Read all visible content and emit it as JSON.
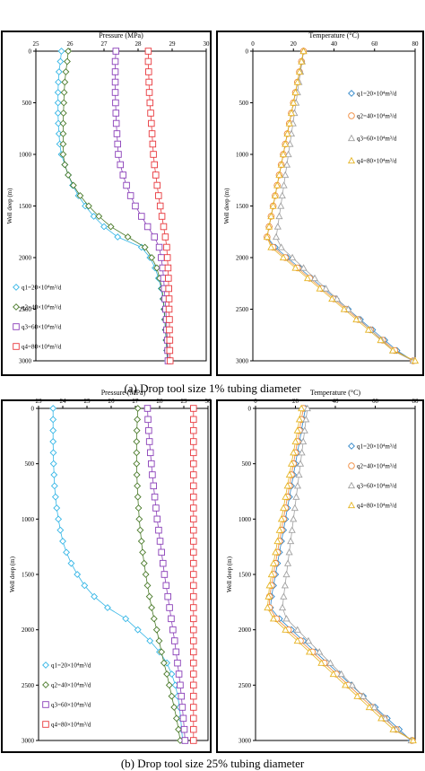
{
  "captions": {
    "a": "(a) Drop tool size 1% tubing diameter",
    "b": "(b) Drop tool size 25% tubing diameter"
  },
  "chart_data": [
    {
      "id": "a-pressure",
      "type": "line",
      "title": "Pressure (MPa)",
      "xlabel": "Pressure (MPa)",
      "ylabel": "Well deep (m)",
      "xlim": [
        25,
        30
      ],
      "xticks": [
        "25",
        "26",
        "27",
        "28",
        "29",
        "30"
      ],
      "ylim": [
        0,
        3000
      ],
      "yticks": [
        "0",
        "500",
        "1000",
        "1500",
        "2000",
        "2500",
        "3000"
      ],
      "y_inverted": true,
      "x_on_top": true,
      "legend_position": "bottom-left",
      "depths": [
        0,
        100,
        200,
        300,
        400,
        500,
        600,
        700,
        800,
        900,
        1000,
        1100,
        1200,
        1300,
        1400,
        1500,
        1600,
        1700,
        1800,
        1900,
        2000,
        2100,
        2200,
        2300,
        2400,
        2500,
        2600,
        2700,
        2800,
        2900,
        3000
      ],
      "series": [
        {
          "name": "q1=20×10⁴m³/d",
          "marker": "diamond",
          "color": "#35b6e6",
          "values": [
            25.75,
            25.72,
            25.68,
            25.66,
            25.65,
            25.65,
            25.65,
            25.66,
            25.68,
            25.7,
            25.75,
            25.85,
            25.95,
            26.08,
            26.25,
            26.45,
            26.7,
            27.0,
            27.4,
            28.1,
            28.35,
            28.5,
            28.6,
            28.68,
            28.73,
            28.76,
            28.78,
            28.8,
            28.82,
            28.84,
            28.86
          ]
        },
        {
          "name": "q2=40×10⁴m³/d",
          "marker": "diamond",
          "color": "#4a7a2a",
          "values": [
            25.95,
            25.92,
            25.88,
            25.85,
            25.83,
            25.82,
            25.81,
            25.8,
            25.8,
            25.8,
            25.8,
            25.85,
            25.95,
            26.1,
            26.3,
            26.55,
            26.85,
            27.2,
            27.7,
            28.2,
            28.4,
            28.55,
            28.63,
            28.7,
            28.74,
            28.77,
            28.79,
            28.81,
            28.83,
            28.85,
            28.87
          ]
        },
        {
          "name": "q3=60×10⁴m³/d",
          "marker": "square",
          "color": "#8a3fb8",
          "values": [
            27.35,
            27.33,
            27.33,
            27.33,
            27.33,
            27.34,
            27.35,
            27.36,
            27.38,
            27.4,
            27.42,
            27.48,
            27.56,
            27.66,
            27.78,
            27.92,
            28.1,
            28.28,
            28.48,
            28.62,
            28.68,
            28.72,
            28.75,
            28.77,
            28.79,
            28.81,
            28.83,
            28.84,
            28.86,
            28.87,
            28.88
          ]
        },
        {
          "name": "q4=80×10⁴m³/d",
          "marker": "square",
          "color": "#e8383d",
          "values": [
            28.3,
            28.3,
            28.31,
            28.32,
            28.33,
            28.35,
            28.37,
            28.39,
            28.41,
            28.43,
            28.45,
            28.48,
            28.52,
            28.56,
            28.6,
            28.65,
            28.7,
            28.75,
            28.8,
            28.84,
            28.86,
            28.88,
            28.89,
            28.9,
            28.91,
            28.91,
            28.92,
            28.92,
            28.93,
            28.93,
            28.94
          ]
        }
      ]
    },
    {
      "id": "a-temperature",
      "type": "line",
      "title": "Temperature (°C)",
      "xlabel": "Temperature (°C)",
      "ylabel": "Well deep (m)",
      "xlim": [
        0,
        80
      ],
      "xticks": [
        "0",
        "20",
        "40",
        "60",
        "80"
      ],
      "ylim": [
        0,
        3000
      ],
      "yticks": [
        "0",
        "500",
        "1000",
        "1500",
        "2000",
        "2500",
        "3000"
      ],
      "y_inverted": true,
      "x_on_top": true,
      "legend_position": "top-right",
      "depths": [
        0,
        100,
        200,
        300,
        400,
        500,
        600,
        700,
        800,
        900,
        1000,
        1100,
        1200,
        1300,
        1400,
        1500,
        1600,
        1700,
        1800,
        1900,
        2000,
        2100,
        2200,
        2300,
        2400,
        2500,
        2600,
        2700,
        2800,
        2900,
        3000
      ],
      "series": [
        {
          "name": "q1=20×10⁴m³/d",
          "marker": "diamond",
          "color": "#2f86c9",
          "values": [
            25,
            24,
            23,
            22,
            21,
            20,
            19,
            18,
            17,
            16,
            15,
            14,
            13,
            12,
            11,
            10,
            9,
            8,
            7,
            11,
            17,
            23,
            29,
            35,
            41,
            47,
            53,
            59,
            65,
            71,
            79
          ]
        },
        {
          "name": "q2=40×10⁴m³/d",
          "marker": "circle",
          "color": "#f08a3c",
          "values": [
            25,
            24,
            23,
            22,
            21,
            20,
            19,
            18,
            17,
            16,
            15,
            14,
            13,
            12,
            11,
            10,
            9,
            8,
            7,
            10,
            16,
            22,
            28,
            34,
            40,
            46,
            52,
            58,
            64,
            70,
            79
          ]
        },
        {
          "name": "q3=60×10⁴m³/d",
          "marker": "triangle",
          "color": "#a0a0a0",
          "values": [
            25,
            24.3,
            23.5,
            22.7,
            22,
            21.3,
            20.5,
            19.8,
            19,
            18.3,
            17.5,
            16.8,
            16,
            15.3,
            14.5,
            13.8,
            13,
            12.3,
            11.5,
            14,
            19.5,
            25,
            30.5,
            36,
            41.5,
            47,
            52.5,
            58,
            63.5,
            69,
            79
          ]
        },
        {
          "name": "q4=80×10⁴m³/d",
          "marker": "triangle",
          "color": "#e6b422",
          "values": [
            25,
            24,
            23,
            22,
            21,
            20,
            19,
            18,
            17,
            16,
            15,
            14,
            13,
            12,
            11,
            10,
            9,
            8,
            7,
            9,
            15,
            21,
            27,
            33,
            39,
            45,
            51,
            57,
            63,
            69,
            80
          ]
        }
      ]
    },
    {
      "id": "b-pressure",
      "type": "line",
      "title": "Pressure (MPa)",
      "xlabel": "Pressure (MPa)",
      "ylabel": "Well deep (m)",
      "xlim": [
        23,
        30
      ],
      "xticks": [
        "23",
        "24",
        "25",
        "26",
        "27",
        "28",
        "29",
        "30"
      ],
      "ylim": [
        0,
        3000
      ],
      "yticks": [
        "0",
        "500",
        "1000",
        "1500",
        "2000",
        "2500",
        "3000"
      ],
      "y_inverted": true,
      "x_on_top": true,
      "legend_position": "bottom-left",
      "depths": [
        0,
        100,
        200,
        300,
        400,
        500,
        600,
        700,
        800,
        900,
        1000,
        1100,
        1200,
        1300,
        1400,
        1500,
        1600,
        1700,
        1800,
        1900,
        2000,
        2100,
        2200,
        2300,
        2400,
        2500,
        2600,
        2700,
        2800,
        2900,
        3000
      ],
      "series": [
        {
          "name": "q1=20×10⁴m³/d",
          "marker": "diamond",
          "color": "#35b6e6",
          "values": [
            23.6,
            23.6,
            23.6,
            23.6,
            23.61,
            23.62,
            23.64,
            23.66,
            23.7,
            23.75,
            23.82,
            23.9,
            24.0,
            24.15,
            24.35,
            24.6,
            24.9,
            25.3,
            25.85,
            26.6,
            27.1,
            27.6,
            28.0,
            28.3,
            28.5,
            28.65,
            28.75,
            28.82,
            28.87,
            28.91,
            28.95
          ]
        },
        {
          "name": "q2=40×10⁴m³/d",
          "marker": "diamond",
          "color": "#4a7a2a",
          "values": [
            27.1,
            27.08,
            27.06,
            27.05,
            27.05,
            27.05,
            27.06,
            27.08,
            27.1,
            27.13,
            27.16,
            27.2,
            27.25,
            27.3,
            27.36,
            27.43,
            27.5,
            27.58,
            27.67,
            27.77,
            27.88,
            27.98,
            28.08,
            28.18,
            28.3,
            28.4,
            28.5,
            28.6,
            28.7,
            28.78,
            28.85
          ]
        },
        {
          "name": "q3=60×10⁴m³/d",
          "marker": "square",
          "color": "#8a3fb8",
          "values": [
            27.5,
            27.52,
            27.55,
            27.58,
            27.62,
            27.66,
            27.7,
            27.75,
            27.8,
            27.85,
            27.9,
            27.96,
            28.02,
            28.08,
            28.14,
            28.2,
            28.27,
            28.34,
            28.41,
            28.48,
            28.55,
            28.62,
            28.68,
            28.74,
            28.8,
            28.85,
            28.9,
            28.94,
            28.98,
            29.02,
            29.05
          ]
        },
        {
          "name": "q4=80×10⁴m³/d",
          "marker": "square",
          "color": "#e8383d",
          "values": [
            29.4,
            29.4,
            29.4,
            29.4,
            29.4,
            29.4,
            29.4,
            29.4,
            29.4,
            29.4,
            29.4,
            29.4,
            29.4,
            29.4,
            29.4,
            29.4,
            29.4,
            29.4,
            29.4,
            29.4,
            29.4,
            29.4,
            29.4,
            29.4,
            29.4,
            29.4,
            29.4,
            29.4,
            29.4,
            29.4,
            29.4
          ]
        }
      ]
    },
    {
      "id": "b-temperature",
      "type": "line",
      "title": "Temperature (°C)",
      "xlabel": "Temperature (°C)",
      "ylabel": "Well deep (m)",
      "xlim": [
        0,
        80
      ],
      "xticks": [
        "0",
        "20",
        "40",
        "60",
        "80"
      ],
      "ylim": [
        0,
        3000
      ],
      "yticks": [
        "0",
        "500",
        "1000",
        "1500",
        "2000",
        "2500",
        "3000"
      ],
      "y_inverted": true,
      "x_on_top": true,
      "legend_position": "top-right",
      "depths": [
        0,
        100,
        200,
        300,
        400,
        500,
        600,
        700,
        800,
        900,
        1000,
        1100,
        1200,
        1300,
        1400,
        1500,
        1600,
        1700,
        1800,
        1900,
        2000,
        2100,
        2200,
        2300,
        2400,
        2500,
        2600,
        2700,
        2800,
        2900,
        3000
      ],
      "series": [
        {
          "name": "q1=20×10⁴m³/d",
          "marker": "diamond",
          "color": "#2f86c9",
          "values": [
            25,
            24,
            23,
            22,
            21,
            20,
            19,
            18,
            17,
            16,
            15,
            14,
            13,
            12,
            11,
            10,
            9,
            8,
            7.5,
            12,
            18,
            24,
            30,
            36,
            42,
            48,
            54,
            60,
            66,
            72,
            78
          ]
        },
        {
          "name": "q2=40×10⁴m³/d",
          "marker": "circle",
          "color": "#f08a3c",
          "values": [
            24,
            23,
            22,
            21,
            20,
            19,
            18,
            17,
            16,
            15,
            14,
            13,
            12,
            11,
            10,
            9,
            8,
            7,
            7,
            10.5,
            16.5,
            22.5,
            28.5,
            34.5,
            40.5,
            46.5,
            52.5,
            58.5,
            64.5,
            70.5,
            78.5
          ]
        },
        {
          "name": "q3=60×10⁴m³/d",
          "marker": "triangle",
          "color": "#a0a0a0",
          "values": [
            26,
            25.3,
            24.6,
            23.9,
            23.2,
            22.5,
            21.8,
            21.1,
            20.4,
            19.7,
            19,
            18.3,
            17.6,
            16.9,
            16.2,
            15.5,
            14.8,
            14.1,
            13.5,
            15.5,
            21,
            26.5,
            32,
            37.5,
            43,
            48.5,
            54,
            59.5,
            65,
            70.5,
            78
          ]
        },
        {
          "name": "q4=80×10⁴m³/d",
          "marker": "triangle",
          "color": "#e6b422",
          "values": [
            23,
            22,
            21,
            20,
            19,
            18,
            17,
            16,
            15,
            14,
            13,
            12,
            11,
            10,
            9,
            8,
            7,
            6.5,
            6,
            9,
            15,
            21,
            27,
            33,
            39,
            45,
            51,
            57,
            63,
            69,
            79
          ]
        }
      ]
    }
  ]
}
